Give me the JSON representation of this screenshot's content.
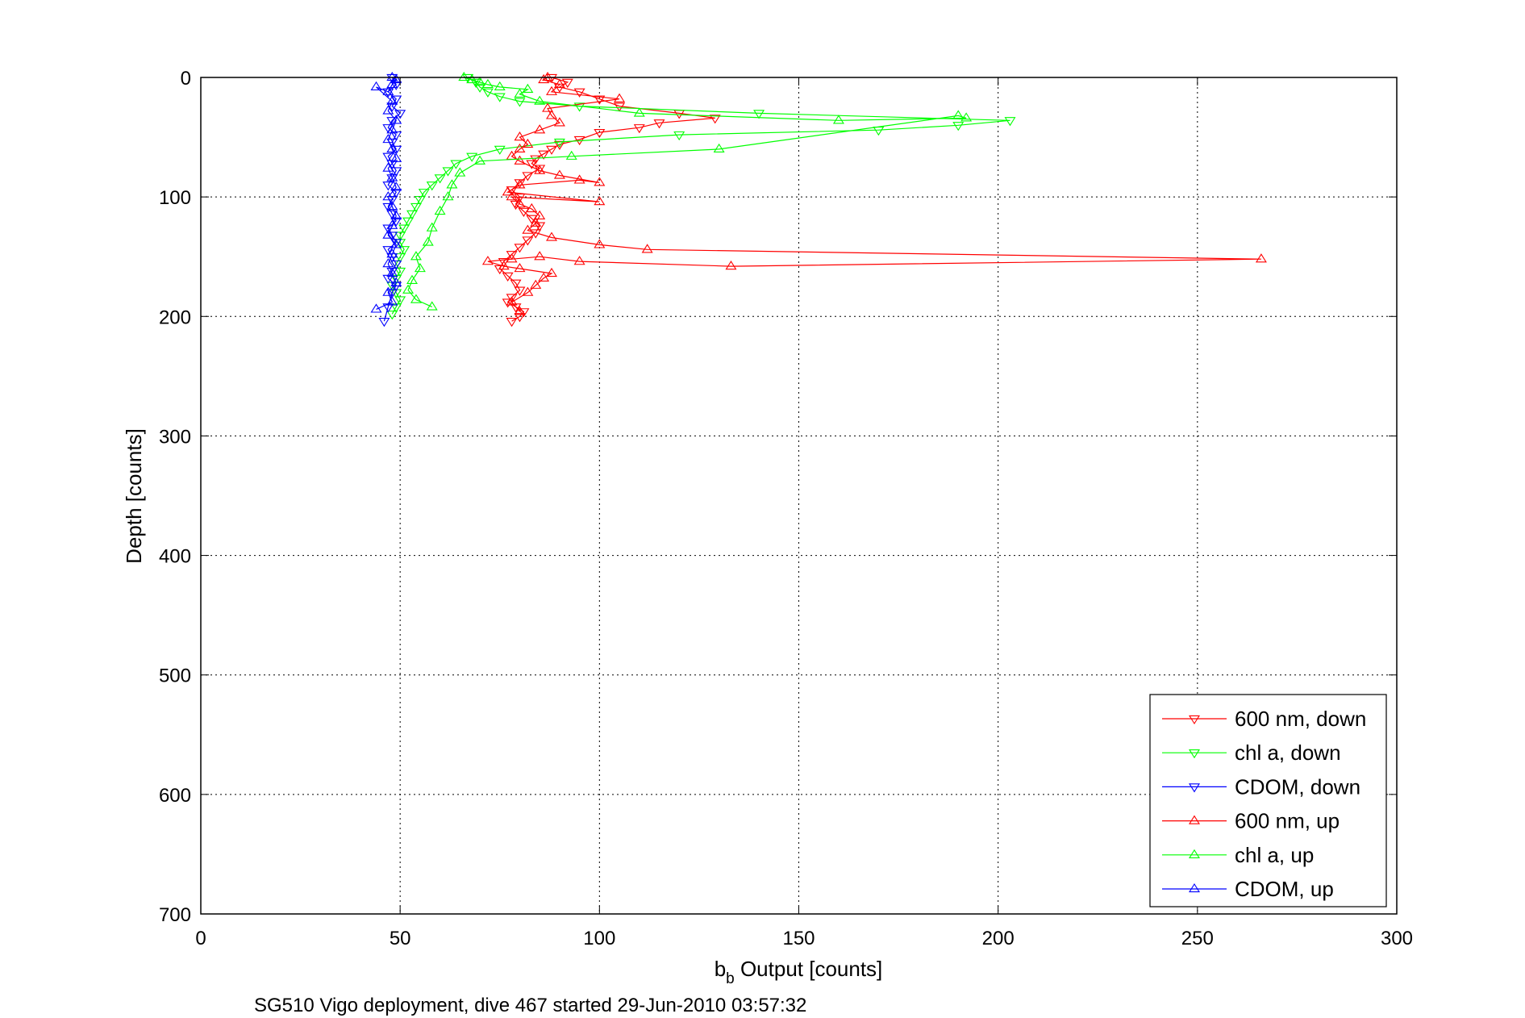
{
  "caption": "SG510 Vigo deployment, dive 467 started 29-Jun-2010 03:57:32",
  "chart_data": {
    "type": "line",
    "xlabel_main": "b",
    "xlabel_sub": "b",
    "xlabel_rest": " Output [counts]",
    "ylabel": "Depth [counts]",
    "xlim": [
      0,
      300
    ],
    "ylim": [
      0,
      700
    ],
    "y_reversed": true,
    "grid": true,
    "legend_position": "bottom-right",
    "xticks": [
      0,
      50,
      100,
      150,
      200,
      250,
      300
    ],
    "yticks": [
      0,
      100,
      200,
      300,
      400,
      500,
      600,
      700
    ],
    "series": [
      {
        "name": "600 nm, down",
        "color": "#ff0000",
        "marker": "triangle-down",
        "x": [
          88,
          92,
          90,
          95,
          100,
          105,
          120,
          129,
          115,
          110,
          100,
          95,
          90,
          88,
          86,
          84,
          83,
          85,
          82,
          80,
          78,
          80,
          79,
          81,
          83,
          85,
          84,
          82,
          80,
          78,
          76,
          75,
          77,
          79,
          80,
          78,
          77,
          79,
          81,
          80,
          78
        ],
        "y": [
          0,
          4,
          8,
          12,
          18,
          24,
          30,
          34,
          38,
          42,
          46,
          52,
          56,
          60,
          64,
          68,
          72,
          76,
          82,
          88,
          94,
          100,
          106,
          112,
          118,
          124,
          130,
          136,
          142,
          148,
          154,
          160,
          166,
          172,
          178,
          184,
          188,
          192,
          196,
          200,
          204
        ]
      },
      {
        "name": "chl a, down",
        "color": "#00ff00",
        "marker": "triangle-down",
        "x": [
          67,
          69,
          70,
          72,
          75,
          80,
          95,
          140,
          203,
          190,
          170,
          120,
          90,
          75,
          68,
          64,
          62,
          60,
          58,
          56,
          55,
          54,
          53,
          52,
          51,
          50,
          50,
          51,
          50,
          49,
          50,
          49,
          48,
          49,
          50,
          49,
          48
        ],
        "y": [
          0,
          4,
          8,
          12,
          16,
          20,
          24,
          30,
          36,
          40,
          44,
          48,
          54,
          60,
          66,
          72,
          78,
          84,
          90,
          96,
          102,
          108,
          114,
          120,
          126,
          132,
          138,
          144,
          150,
          156,
          162,
          168,
          174,
          180,
          186,
          192,
          198
        ]
      },
      {
        "name": "CDOM, down",
        "color": "#0000ff",
        "marker": "triangle-down",
        "x": [
          48,
          49,
          47,
          49,
          48,
          50,
          48,
          47,
          49,
          48,
          49,
          47,
          48,
          49,
          48,
          47,
          49,
          48,
          47,
          48,
          49,
          47,
          48,
          49,
          47,
          48,
          49,
          48,
          47,
          49,
          48,
          47,
          46
        ],
        "y": [
          0,
          6,
          12,
          18,
          24,
          30,
          36,
          42,
          48,
          54,
          60,
          66,
          72,
          78,
          84,
          90,
          96,
          102,
          108,
          114,
          120,
          126,
          132,
          138,
          144,
          150,
          156,
          162,
          168,
          174,
          180,
          192,
          204
        ]
      },
      {
        "name": "600 nm, up",
        "color": "#ff0000",
        "marker": "triangle-up",
        "x": [
          80,
          78,
          82,
          84,
          86,
          88,
          80,
          76,
          72,
          78,
          85,
          95,
          133,
          266,
          112,
          100,
          88,
          82,
          84,
          85,
          83,
          80,
          78,
          100,
          77,
          80,
          95,
          100,
          90,
          85,
          80,
          78,
          80,
          82,
          80,
          85,
          90,
          88,
          87,
          105,
          88,
          90,
          86,
          87
        ],
        "y": [
          196,
          188,
          180,
          174,
          168,
          164,
          160,
          158,
          154,
          152,
          150,
          154,
          158,
          152,
          144,
          140,
          134,
          128,
          122,
          116,
          110,
          106,
          100,
          104,
          96,
          90,
          86,
          88,
          82,
          78,
          70,
          66,
          60,
          56,
          50,
          44,
          38,
          32,
          26,
          18,
          12,
          6,
          2,
          0
        ]
      },
      {
        "name": "chl a, up",
        "color": "#00ff00",
        "marker": "triangle-up",
        "x": [
          58,
          54,
          52,
          53,
          55,
          54,
          57,
          58,
          60,
          62,
          63,
          65,
          70,
          93,
          130,
          190,
          192,
          160,
          110,
          85,
          80,
          82,
          75,
          72,
          70,
          68,
          66
        ],
        "y": [
          192,
          186,
          178,
          170,
          160,
          150,
          138,
          126,
          112,
          100,
          90,
          80,
          70,
          66,
          60,
          32,
          34,
          36,
          30,
          20,
          14,
          10,
          8,
          6,
          4,
          2,
          0
        ]
      },
      {
        "name": "CDOM, up",
        "color": "#0000ff",
        "marker": "triangle-up",
        "x": [
          44,
          48,
          47,
          49,
          48,
          47,
          48,
          49,
          47,
          48,
          49,
          48,
          47,
          49,
          48,
          47,
          49,
          48,
          47,
          48,
          49,
          47,
          48,
          44,
          47,
          48,
          49,
          48
        ],
        "y": [
          194,
          188,
          180,
          172,
          164,
          156,
          148,
          140,
          132,
          124,
          116,
          108,
          100,
          92,
          84,
          76,
          68,
          60,
          52,
          44,
          36,
          28,
          20,
          8,
          12,
          6,
          2,
          0
        ]
      }
    ]
  }
}
